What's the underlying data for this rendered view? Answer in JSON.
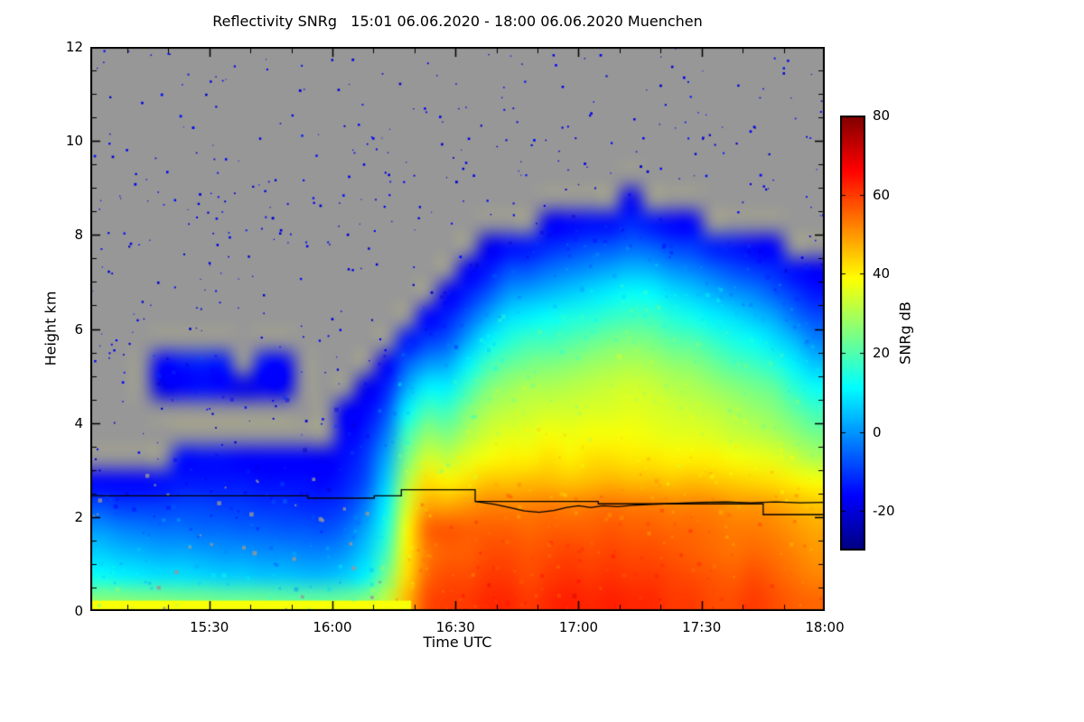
{
  "chart_data": {
    "type": "heatmap",
    "title": "Reflectivity SNRg   15:01 06.06.2020 - 18:00 06.06.2020 Muenchen",
    "xlabel": "Time UTC",
    "ylabel": "Height km",
    "colorbar_label": "SNRg dB",
    "x_range_hours": [
      15.0167,
      18.0
    ],
    "y_range_km": [
      0,
      12
    ],
    "value_range_db": [
      -30,
      80
    ],
    "colormap": "jet",
    "no_data_color": "#979797",
    "frame_color": "#000000",
    "x_ticks": [
      {
        "label": "15:30",
        "t": 15.5
      },
      {
        "label": "16:00",
        "t": 16.0
      },
      {
        "label": "16:30",
        "t": 16.5
      },
      {
        "label": "17:00",
        "t": 17.0
      },
      {
        "label": "17:30",
        "t": 17.5
      },
      {
        "label": "18:00",
        "t": 18.0
      }
    ],
    "y_ticks": [
      {
        "label": "0",
        "v": 0
      },
      {
        "label": "2",
        "v": 2
      },
      {
        "label": "4",
        "v": 4
      },
      {
        "label": "6",
        "v": 6
      },
      {
        "label": "8",
        "v": 8
      },
      {
        "label": "10",
        "v": 10
      },
      {
        "label": "12",
        "v": 12
      }
    ],
    "colorbar_ticks": [
      {
        "label": "80",
        "v": 80
      },
      {
        "label": "60",
        "v": 60
      },
      {
        "label": "40",
        "v": 40
      },
      {
        "label": "20",
        "v": 20
      },
      {
        "label": "0",
        "v": 0
      },
      {
        "label": "-20",
        "v": -20
      }
    ],
    "grid": {
      "t_start": 15.0,
      "t_step_minutes": 5,
      "h_start": 0,
      "h_step_km": 0.5,
      "unit": "dB",
      "comment": "columns: SNRg dB from ground upward in 0.5 km bins; missing/short = no signal (gray)",
      "columns": [
        [
          26,
          12,
          6,
          0,
          -8,
          -16
        ],
        [
          26,
          10,
          4,
          -2,
          -10,
          -16
        ],
        [
          25,
          9,
          3,
          -3,
          -10,
          -16
        ],
        [
          25,
          8,
          2,
          -4,
          -10,
          -15,
          null,
          null,
          null,
          -18,
          -16
        ],
        [
          24,
          8,
          2,
          -4,
          -9,
          -14,
          -15,
          null,
          null,
          -16,
          -14
        ],
        [
          24,
          7,
          1,
          -5,
          -9,
          -14,
          -15,
          null,
          null,
          -15,
          -13
        ],
        [
          23,
          6,
          0,
          -5,
          -10,
          -14,
          -15,
          null,
          null,
          -16,
          -14
        ],
        [
          23,
          6,
          0,
          -6,
          -10,
          -14,
          -16,
          null,
          null,
          -18
        ],
        [
          23,
          5,
          -1,
          -6,
          -11,
          -15,
          -16,
          null,
          null,
          -17,
          -15
        ],
        [
          22,
          5,
          -1,
          -7,
          -11,
          -15,
          -16,
          null,
          null,
          -17,
          -16
        ],
        [
          22,
          4,
          -2,
          -7,
          -12,
          -15,
          -16
        ],
        [
          22,
          4,
          -2,
          -8,
          -12,
          -16,
          -17
        ],
        [
          23,
          6,
          0,
          -5,
          -10,
          -13,
          -15,
          -16,
          -17
        ],
        [
          25,
          10,
          6,
          2,
          -3,
          -8,
          -10,
          -13,
          -16,
          -18
        ],
        [
          32,
          24,
          18,
          14,
          10,
          6,
          2,
          -3,
          -8,
          -13,
          -17
        ],
        [
          46,
          42,
          40,
          38,
          34,
          30,
          24,
          18,
          10,
          2,
          -6,
          -14
        ],
        [
          58,
          55,
          53,
          55,
          48,
          42,
          34,
          27,
          19,
          10,
          0,
          -10,
          -16
        ],
        [
          60,
          58,
          56,
          57,
          48,
          40,
          32,
          25,
          18,
          10,
          2,
          -7,
          -13,
          -17
        ],
        [
          60,
          58,
          56,
          56,
          50,
          42,
          36,
          30,
          25,
          18,
          10,
          2,
          -6,
          -13,
          -17
        ],
        [
          62,
          60,
          58,
          56,
          52,
          45,
          38,
          34,
          30,
          25,
          18,
          10,
          2,
          -7,
          -14,
          -18
        ],
        [
          62,
          60,
          58,
          56,
          52,
          45,
          40,
          36,
          32,
          28,
          22,
          15,
          8,
          0,
          -8,
          -15
        ],
        [
          60,
          58,
          57,
          55,
          52,
          46,
          40,
          36,
          33,
          30,
          24,
          18,
          10,
          2,
          -7,
          -14
        ],
        [
          62,
          60,
          58,
          56,
          53,
          46,
          42,
          38,
          34,
          30,
          25,
          18,
          12,
          4,
          -4,
          -12,
          -17
        ],
        [
          63,
          61,
          59,
          56,
          52,
          45,
          40,
          37,
          34,
          31,
          26,
          20,
          14,
          6,
          -2,
          -10,
          -16
        ],
        [
          62,
          60,
          58,
          56,
          53,
          46,
          42,
          38,
          35,
          32,
          28,
          22,
          15,
          8,
          0,
          -8,
          -15
        ],
        [
          63,
          61,
          59,
          57,
          54,
          47,
          42,
          38,
          35,
          33,
          29,
          24,
          17,
          10,
          2,
          -7,
          -15
        ],
        [
          62,
          60,
          58,
          56,
          53,
          46,
          41,
          38,
          36,
          34,
          30,
          25,
          18,
          12,
          4,
          -5,
          -12,
          -17
        ],
        [
          62,
          60,
          58,
          56,
          53,
          46,
          41,
          37,
          35,
          33,
          29,
          24,
          18,
          11,
          3,
          -6,
          -14
        ],
        [
          60,
          59,
          57,
          55,
          52,
          45,
          40,
          36,
          34,
          31,
          27,
          21,
          15,
          8,
          0,
          -9,
          -16
        ],
        [
          60,
          58,
          56,
          55,
          52,
          46,
          40,
          36,
          33,
          30,
          26,
          20,
          13,
          6,
          -2,
          -10,
          -16
        ],
        [
          58,
          57,
          55,
          54,
          52,
          45,
          40,
          35,
          32,
          28,
          23,
          17,
          10,
          3,
          -5,
          -13
        ],
        [
          58,
          56,
          54,
          53,
          50,
          44,
          38,
          33,
          30,
          26,
          20,
          14,
          8,
          0,
          -8,
          -14
        ],
        [
          60,
          58,
          55,
          53,
          50,
          43,
          37,
          32,
          28,
          24,
          18,
          12,
          5,
          -2,
          -10,
          -16
        ],
        [
          58,
          56,
          54,
          52,
          49,
          42,
          36,
          30,
          26,
          22,
          15,
          8,
          2,
          -6,
          -12,
          -16
        ],
        [
          56,
          54,
          52,
          50,
          47,
          40,
          33,
          27,
          22,
          16,
          10,
          4,
          -4,
          -10,
          -15
        ],
        [
          55,
          52,
          50,
          48,
          45,
          38,
          30,
          24,
          18,
          12,
          5,
          -2,
          -8,
          -14,
          -17
        ]
      ]
    },
    "surface_layer": {
      "from": 15.0,
      "to": 16.32,
      "top_km": 0.22,
      "value_db": 38
    },
    "lines": {
      "stepped_melting_layer": [
        [
          15.0167,
          2.45
        ],
        [
          15.9,
          2.45
        ],
        [
          15.9,
          2.4
        ],
        [
          16.17,
          2.4
        ],
        [
          16.17,
          2.45
        ],
        [
          16.28,
          2.45
        ],
        [
          16.28,
          2.58
        ],
        [
          16.58,
          2.58
        ],
        [
          16.58,
          2.33
        ],
        [
          17.08,
          2.33
        ],
        [
          17.08,
          2.28
        ],
        [
          17.75,
          2.28
        ],
        [
          17.75,
          2.05
        ],
        [
          18.0,
          2.05
        ]
      ],
      "measured_melting_layer": [
        [
          16.58,
          2.33
        ],
        [
          16.66,
          2.27
        ],
        [
          16.72,
          2.2
        ],
        [
          16.78,
          2.13
        ],
        [
          16.84,
          2.1
        ],
        [
          16.9,
          2.14
        ],
        [
          16.95,
          2.2
        ],
        [
          17.0,
          2.24
        ],
        [
          17.05,
          2.2
        ],
        [
          17.1,
          2.24
        ],
        [
          17.16,
          2.22
        ],
        [
          17.22,
          2.25
        ],
        [
          17.3,
          2.27
        ],
        [
          17.4,
          2.29
        ],
        [
          17.5,
          2.31
        ],
        [
          17.6,
          2.32
        ],
        [
          17.7,
          2.3
        ],
        [
          17.8,
          2.32
        ],
        [
          17.9,
          2.3
        ],
        [
          18.0,
          2.31
        ]
      ]
    },
    "speckle": {
      "seed": 20200606,
      "clear_air_dots": 380,
      "texture_dots": 1600
    }
  }
}
